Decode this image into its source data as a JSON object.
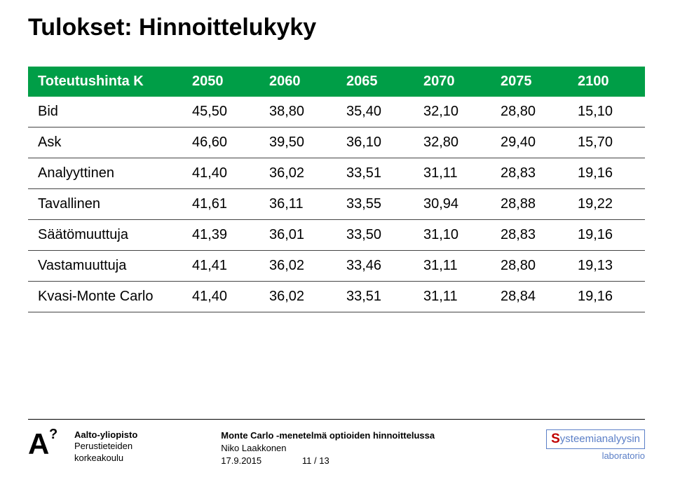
{
  "title": "Tulokset: Hinnoittelukyky",
  "table": {
    "columns": [
      "Toteutushinta K",
      "2050",
      "2060",
      "2065",
      "2070",
      "2075",
      "2100"
    ],
    "rows": [
      [
        "Bid",
        "45,50",
        "38,80",
        "35,40",
        "32,10",
        "28,80",
        "15,10"
      ],
      [
        "Ask",
        "46,60",
        "39,50",
        "36,10",
        "32,80",
        "29,40",
        "15,70"
      ],
      [
        "Analyyttinen",
        "41,40",
        "36,02",
        "33,51",
        "31,11",
        "28,83",
        "19,16"
      ],
      [
        "Tavallinen",
        "41,61",
        "36,11",
        "33,55",
        "30,94",
        "28,88",
        "19,22"
      ],
      [
        "Säätömuuttuja",
        "41,39",
        "36,01",
        "33,50",
        "31,10",
        "28,83",
        "19,16"
      ],
      [
        "Vastamuuttuja",
        "41,41",
        "36,02",
        "33,46",
        "31,11",
        "28,80",
        "19,13"
      ],
      [
        "Kvasi-Monte Carlo",
        "41,40",
        "36,02",
        "33,51",
        "31,11",
        "28,84",
        "19,16"
      ]
    ],
    "header_bg": "#009e47",
    "header_fg": "#ffffff",
    "row_border": "#444444",
    "cell_fontsize": 20
  },
  "footer": {
    "aalto": {
      "line1": "Aalto-yliopisto",
      "line2": "Perustieteiden",
      "line3": "korkeakoulu"
    },
    "center": {
      "title": "Monte Carlo -menetelmä optioiden hinnoittelussa",
      "author": "Niko Laakkonen",
      "date": "17.9.2015",
      "page": "11 / 13"
    },
    "right": {
      "brand": "ysteemianalyysin",
      "lab": "laboratorio"
    }
  }
}
